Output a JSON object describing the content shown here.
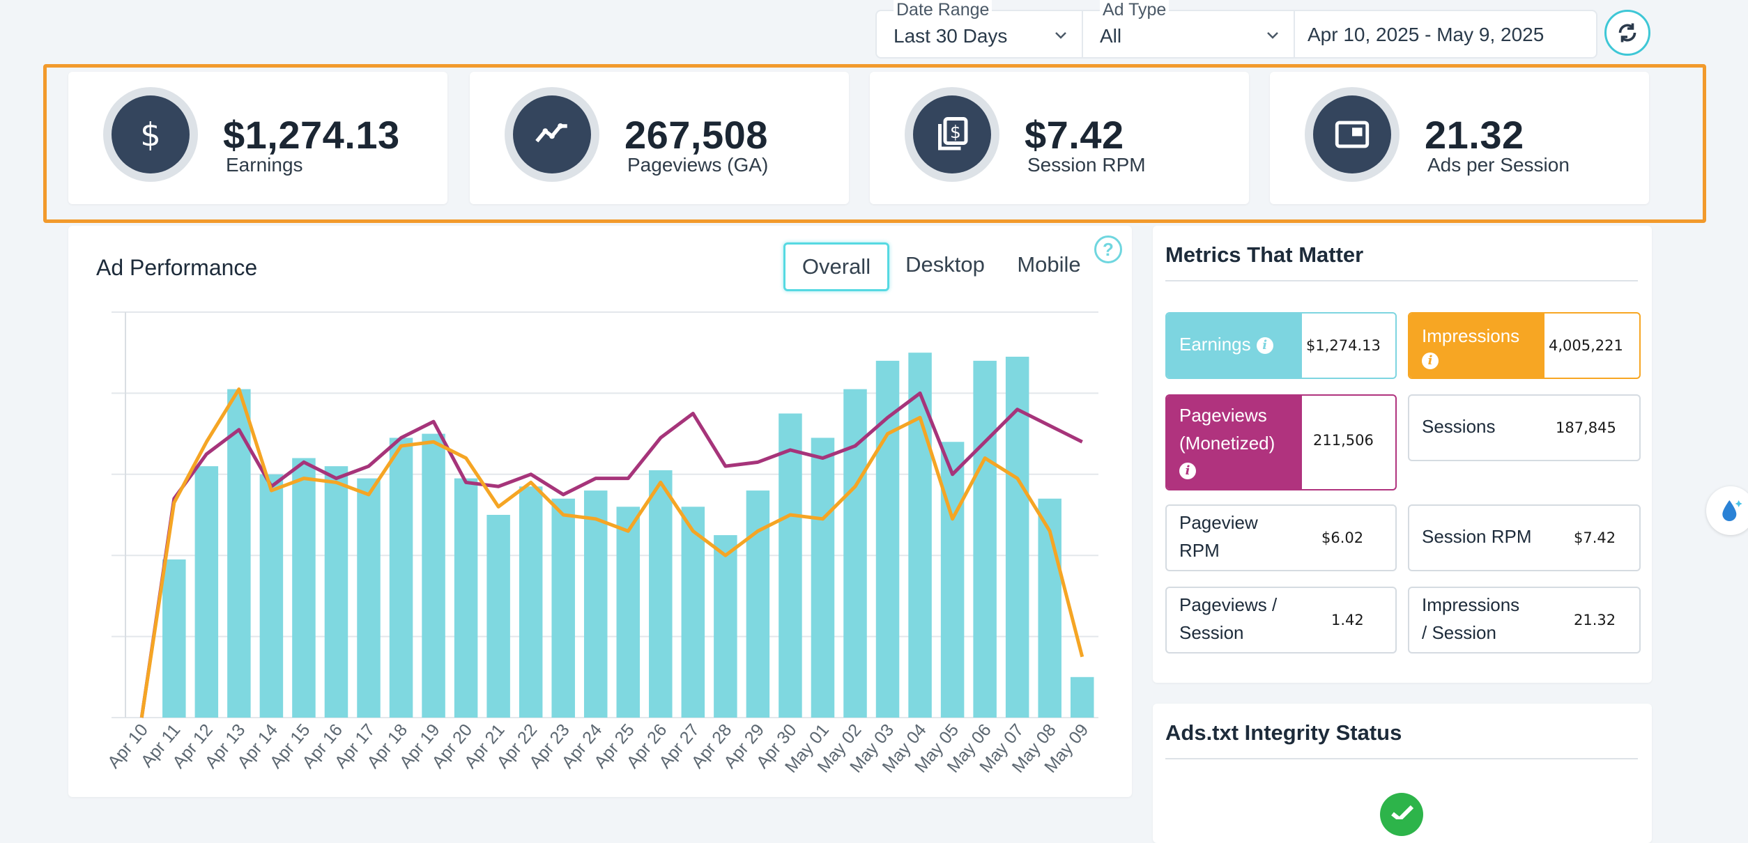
{
  "filters": {
    "date_range_label": "Date Range",
    "date_range_value": "Last 30 Days",
    "ad_type_label": "Ad Type",
    "ad_type_value": "All",
    "date_span": "Apr 10, 2025 - May 9, 2025"
  },
  "kpis": [
    {
      "value": "$1,274.13",
      "label": "Earnings",
      "icon": "dollar-icon"
    },
    {
      "value": "267,508",
      "label": "Pageviews (GA)",
      "icon": "trend-line-icon"
    },
    {
      "value": "$7.42",
      "label": "Session RPM",
      "icon": "money-stack-icon"
    },
    {
      "value": "21.32",
      "label": "Ads per Session",
      "icon": "ad-window-icon"
    }
  ],
  "ad_performance": {
    "title": "Ad Performance",
    "tabs": [
      "Overall",
      "Desktop",
      "Mobile"
    ],
    "active_tab": "Overall",
    "help": "?"
  },
  "metrics": {
    "title": "Metrics That Matter",
    "items": [
      {
        "label": "Earnings",
        "value": "$1,274.13"
      },
      {
        "label": "Impressions",
        "value": "4,005,221"
      },
      {
        "label_lines": [
          "Pageviews",
          "(Monetized)"
        ],
        "value": "211,506"
      },
      {
        "label": "Sessions",
        "value": "187,845"
      },
      {
        "label_lines": [
          "Pageview",
          "RPM"
        ],
        "value": "$6.02"
      },
      {
        "label": "Session RPM",
        "value": "$7.42"
      },
      {
        "label_lines": [
          "Pageviews /",
          "Session"
        ],
        "value": "1.42"
      },
      {
        "label_lines": [
          "Impressions",
          "/ Session"
        ],
        "value": "21.32"
      }
    ],
    "colors": {
      "earnings": "#7dd5e0",
      "impressions": "#f7a623",
      "pageviews": "#b0337e"
    }
  },
  "ads_txt": {
    "title": "Ads.txt Integrity Status"
  },
  "chart_data": {
    "type": "bar",
    "title": "Ad Performance",
    "categories": [
      "Apr 10",
      "Apr 11",
      "Apr 12",
      "Apr 13",
      "Apr 14",
      "Apr 15",
      "Apr 16",
      "Apr 17",
      "Apr 18",
      "Apr 19",
      "Apr 20",
      "Apr 21",
      "Apr 22",
      "Apr 23",
      "Apr 24",
      "Apr 25",
      "Apr 26",
      "Apr 27",
      "Apr 28",
      "Apr 29",
      "Apr 30",
      "May 01",
      "May 02",
      "May 03",
      "May 04",
      "May 05",
      "May 06",
      "May 07",
      "May 08",
      "May 09"
    ],
    "ylim": [
      0,
      100
    ],
    "grid": true,
    "series": [
      {
        "name": "Earnings",
        "kind": "bar",
        "color": "#7fd8e0",
        "values": [
          0,
          39,
          62,
          81,
          60,
          64,
          62,
          59,
          69,
          70,
          59,
          50,
          57,
          54,
          56,
          52,
          61,
          52,
          45,
          56,
          75,
          69,
          81,
          88,
          90,
          68,
          88,
          89,
          54,
          10
        ]
      },
      {
        "name": "Pageviews (Monetized)",
        "kind": "line",
        "color": "#a6347a",
        "values": [
          0,
          54,
          65,
          71,
          57,
          63,
          59,
          62,
          69,
          73,
          58,
          57,
          60,
          55,
          59,
          59,
          69,
          75,
          62,
          63,
          66,
          64,
          67,
          74,
          80,
          60,
          68,
          76,
          72,
          68
        ]
      },
      {
        "name": "Impressions",
        "kind": "line",
        "color": "#f5a524",
        "values": [
          0,
          53,
          68,
          81,
          56,
          59,
          58,
          55,
          67,
          68,
          64,
          52,
          58,
          50,
          49,
          46,
          58,
          46,
          40,
          46,
          50,
          49,
          57,
          70,
          74,
          49,
          64,
          59,
          46,
          15
        ]
      }
    ]
  }
}
